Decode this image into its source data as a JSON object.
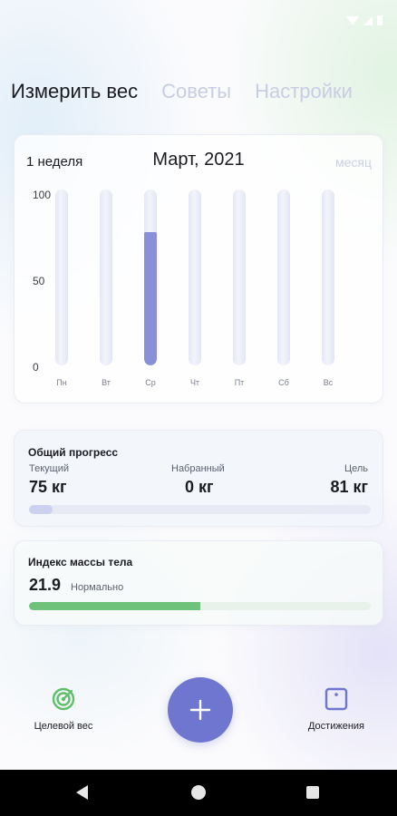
{
  "tabs": [
    {
      "label": "Измерить вес",
      "active": true
    },
    {
      "label": "Советы",
      "active": false
    },
    {
      "label": "Настройки",
      "active": false
    }
  ],
  "chart_card": {
    "week_label": "1 неделя",
    "month_title": "Март, 2021",
    "period_toggle": "месяц"
  },
  "chart_data": {
    "type": "bar",
    "categories": [
      "Пн",
      "Вт",
      "Ср",
      "Чт",
      "Пт",
      "Сб",
      "Вс"
    ],
    "values": [
      0,
      0,
      76,
      0,
      0,
      0,
      0
    ],
    "ylim": [
      0,
      100
    ],
    "yticks": [
      "100",
      "50",
      "0"
    ],
    "grid": false,
    "bar_color": "#8a90d8",
    "track_color": "#e4e7f6"
  },
  "progress": {
    "title": "Общий прогресс",
    "current_label": "Текущий",
    "current_value": "75 кг",
    "gained_label": "Набранный",
    "gained_value": "0 кг",
    "goal_label": "Цель",
    "goal_value": "81 кг",
    "fill_fraction": 0.07
  },
  "bmi": {
    "title": "Индекс массы тела",
    "value": "21.9",
    "status": "Нормально",
    "fill_fraction": 0.5,
    "color": "#6ec27a"
  },
  "bottom_nav": {
    "target_label": "Целевой вес",
    "achievements_label": "Достижения",
    "add_icon": "plus-icon",
    "accent": "#6f76d0"
  }
}
